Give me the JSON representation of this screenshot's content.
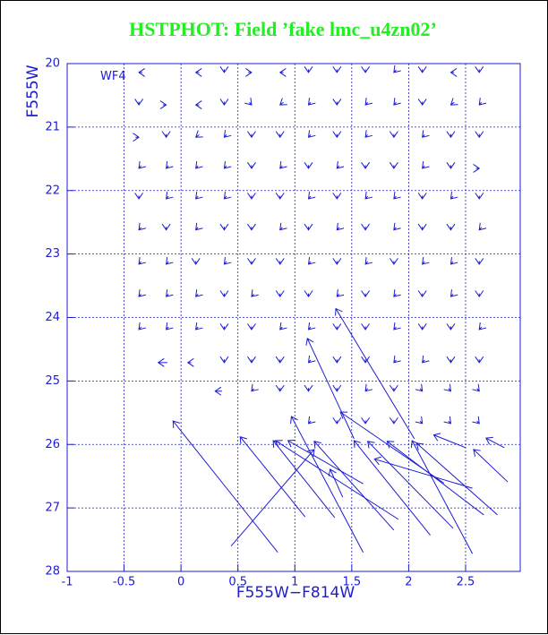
{
  "chart_data": {
    "type": "vector",
    "title": "HSTPHOT: Field ’fake lmc_u4zn02’",
    "title_color": "#22ee22",
    "xlabel": "F555W−F814W",
    "ylabel": "F555W",
    "annotation": "WF4",
    "color": "#1c1cd0",
    "grid": true,
    "y_inverted": true,
    "xlim": [
      -1,
      2.98
    ],
    "ylim": [
      20,
      28
    ],
    "xticks": [
      -1,
      -0.5,
      0,
      0.5,
      1,
      1.5,
      2,
      2.5
    ],
    "yticks": [
      20,
      21,
      22,
      23,
      24,
      25,
      26,
      27,
      28
    ],
    "arrows": [
      [
        -0.34,
        20.14,
        -0.37,
        20.14
      ],
      [
        0.16,
        20.14,
        0.13,
        20.14
      ],
      [
        0.38,
        20.09,
        0.38,
        20.14
      ],
      [
        0.59,
        20.14,
        0.62,
        20.14
      ],
      [
        0.9,
        20.14,
        0.87,
        20.14
      ],
      [
        1.12,
        20.09,
        1.12,
        20.14
      ],
      [
        1.37,
        20.09,
        1.37,
        20.14
      ],
      [
        1.62,
        20.09,
        1.62,
        20.14
      ],
      [
        1.89,
        20.1,
        1.87,
        20.14
      ],
      [
        2.12,
        20.09,
        2.12,
        20.14
      ],
      [
        2.4,
        20.14,
        2.37,
        20.14
      ],
      [
        2.62,
        20.09,
        2.62,
        20.14
      ],
      [
        -0.37,
        20.6,
        -0.37,
        20.65
      ],
      [
        -0.16,
        20.65,
        -0.13,
        20.65
      ],
      [
        0.16,
        20.65,
        0.13,
        20.65
      ],
      [
        0.38,
        20.6,
        0.38,
        20.65
      ],
      [
        0.6,
        20.61,
        0.62,
        20.65
      ],
      [
        0.9,
        20.61,
        0.87,
        20.65
      ],
      [
        1.14,
        20.61,
        1.12,
        20.65
      ],
      [
        1.37,
        20.6,
        1.37,
        20.65
      ],
      [
        1.64,
        20.61,
        1.62,
        20.65
      ],
      [
        1.89,
        20.61,
        1.87,
        20.65
      ],
      [
        2.12,
        20.6,
        2.12,
        20.65
      ],
      [
        2.4,
        20.61,
        2.37,
        20.65
      ],
      [
        2.64,
        20.61,
        2.62,
        20.65
      ],
      [
        -0.4,
        21.16,
        -0.37,
        21.16
      ],
      [
        -0.13,
        21.11,
        -0.13,
        21.16
      ],
      [
        0.16,
        21.12,
        0.13,
        21.16
      ],
      [
        0.4,
        21.12,
        0.38,
        21.16
      ],
      [
        0.62,
        21.11,
        0.62,
        21.16
      ],
      [
        0.87,
        21.11,
        0.87,
        21.16
      ],
      [
        1.14,
        21.12,
        1.12,
        21.16
      ],
      [
        1.37,
        21.11,
        1.37,
        21.16
      ],
      [
        1.64,
        21.12,
        1.62,
        21.16
      ],
      [
        1.87,
        21.11,
        1.87,
        21.16
      ],
      [
        2.14,
        21.12,
        2.12,
        21.16
      ],
      [
        2.37,
        21.11,
        2.37,
        21.16
      ],
      [
        2.62,
        21.11,
        2.62,
        21.16
      ],
      [
        -0.35,
        21.61,
        -0.37,
        21.65
      ],
      [
        -0.11,
        21.61,
        -0.13,
        21.65
      ],
      [
        0.15,
        21.61,
        0.13,
        21.65
      ],
      [
        0.4,
        21.61,
        0.38,
        21.65
      ],
      [
        0.62,
        21.6,
        0.62,
        21.65
      ],
      [
        0.89,
        21.61,
        0.87,
        21.65
      ],
      [
        1.12,
        21.6,
        1.12,
        21.65
      ],
      [
        1.39,
        21.61,
        1.37,
        21.65
      ],
      [
        1.62,
        21.6,
        1.62,
        21.65
      ],
      [
        1.87,
        21.6,
        1.87,
        21.65
      ],
      [
        2.14,
        21.61,
        2.12,
        21.65
      ],
      [
        2.37,
        21.6,
        2.37,
        21.65
      ],
      [
        2.59,
        21.65,
        2.62,
        21.65
      ],
      [
        -0.37,
        22.08,
        -0.37,
        22.13
      ],
      [
        -0.11,
        22.09,
        -0.13,
        22.13
      ],
      [
        0.15,
        22.09,
        0.13,
        22.13
      ],
      [
        0.4,
        22.09,
        0.38,
        22.13
      ],
      [
        0.62,
        22.08,
        0.62,
        22.13
      ],
      [
        0.87,
        22.08,
        0.87,
        22.13
      ],
      [
        1.14,
        22.09,
        1.12,
        22.13
      ],
      [
        1.37,
        22.08,
        1.37,
        22.13
      ],
      [
        1.64,
        22.09,
        1.62,
        22.13
      ],
      [
        1.89,
        22.09,
        1.87,
        22.13
      ],
      [
        2.12,
        22.08,
        2.12,
        22.13
      ],
      [
        2.39,
        22.09,
        2.37,
        22.13
      ],
      [
        2.62,
        22.08,
        2.62,
        22.13
      ],
      [
        -0.35,
        22.58,
        -0.37,
        22.62
      ],
      [
        -0.13,
        22.57,
        -0.13,
        22.62
      ],
      [
        0.15,
        22.58,
        0.13,
        22.62
      ],
      [
        0.38,
        22.57,
        0.38,
        22.62
      ],
      [
        0.62,
        22.57,
        0.62,
        22.62
      ],
      [
        0.89,
        22.58,
        0.87,
        22.62
      ],
      [
        1.12,
        22.57,
        1.12,
        22.62
      ],
      [
        1.39,
        22.58,
        1.37,
        22.62
      ],
      [
        1.62,
        22.57,
        1.62,
        22.62
      ],
      [
        1.89,
        22.58,
        1.87,
        22.62
      ],
      [
        2.12,
        22.57,
        2.12,
        22.62
      ],
      [
        2.37,
        22.57,
        2.37,
        22.62
      ],
      [
        2.64,
        22.58,
        2.62,
        22.62
      ],
      [
        -0.35,
        23.12,
        -0.37,
        23.16
      ],
      [
        -0.11,
        23.12,
        -0.13,
        23.16
      ],
      [
        0.13,
        23.11,
        0.13,
        23.16
      ],
      [
        0.4,
        23.12,
        0.38,
        23.16
      ],
      [
        0.62,
        23.11,
        0.62,
        23.16
      ],
      [
        0.87,
        23.11,
        0.87,
        23.16
      ],
      [
        1.14,
        23.12,
        1.12,
        23.16
      ],
      [
        1.37,
        23.11,
        1.37,
        23.16
      ],
      [
        1.64,
        23.12,
        1.62,
        23.16
      ],
      [
        1.87,
        23.11,
        1.87,
        23.16
      ],
      [
        2.14,
        23.12,
        2.12,
        23.16
      ],
      [
        2.39,
        23.12,
        2.37,
        23.16
      ],
      [
        2.62,
        23.11,
        2.62,
        23.16
      ],
      [
        -0.35,
        23.63,
        -0.37,
        23.67
      ],
      [
        -0.11,
        23.63,
        -0.13,
        23.67
      ],
      [
        0.15,
        23.63,
        0.13,
        23.67
      ],
      [
        0.38,
        23.62,
        0.38,
        23.67
      ],
      [
        0.64,
        23.63,
        0.62,
        23.67
      ],
      [
        0.87,
        23.62,
        0.87,
        23.67
      ],
      [
        1.12,
        23.62,
        1.12,
        23.67
      ],
      [
        1.39,
        23.63,
        1.37,
        23.67
      ],
      [
        1.62,
        23.62,
        1.62,
        23.67
      ],
      [
        1.89,
        23.63,
        1.87,
        23.67
      ],
      [
        2.12,
        23.62,
        2.12,
        23.67
      ],
      [
        2.39,
        23.63,
        2.37,
        23.67
      ],
      [
        2.62,
        23.62,
        2.62,
        23.67
      ],
      [
        -0.35,
        24.15,
        -0.37,
        24.19
      ],
      [
        -0.11,
        24.15,
        -0.13,
        24.19
      ],
      [
        0.15,
        24.15,
        0.13,
        24.19
      ],
      [
        0.38,
        24.14,
        0.38,
        24.19
      ],
      [
        0.62,
        24.14,
        0.62,
        24.19
      ],
      [
        0.89,
        24.15,
        0.87,
        24.19
      ],
      [
        1.14,
        24.15,
        1.12,
        24.19
      ],
      [
        1.37,
        24.14,
        1.37,
        24.19
      ],
      [
        1.62,
        24.14,
        1.62,
        24.19
      ],
      [
        1.89,
        24.15,
        1.87,
        24.19
      ],
      [
        2.12,
        24.14,
        2.12,
        24.19
      ],
      [
        2.37,
        24.14,
        2.37,
        24.19
      ],
      [
        2.64,
        24.15,
        2.62,
        24.19
      ],
      [
        -0.12,
        24.71,
        -0.2,
        24.71
      ],
      [
        0.09,
        24.71,
        0.06,
        24.71
      ],
      [
        0.38,
        24.66,
        0.38,
        24.71
      ],
      [
        0.62,
        24.66,
        0.62,
        24.71
      ],
      [
        0.87,
        24.66,
        0.87,
        24.71
      ],
      [
        1.14,
        24.67,
        1.12,
        24.71
      ],
      [
        1.37,
        24.66,
        1.37,
        24.71
      ],
      [
        1.62,
        24.66,
        1.62,
        24.71
      ],
      [
        1.89,
        24.67,
        1.87,
        24.71
      ],
      [
        2.14,
        24.67,
        2.12,
        24.71
      ],
      [
        2.37,
        24.66,
        2.37,
        24.71
      ],
      [
        2.62,
        24.66,
        2.62,
        24.71
      ],
      [
        0.36,
        25.16,
        0.3,
        25.16
      ],
      [
        0.64,
        25.12,
        0.62,
        25.16
      ],
      [
        0.87,
        25.11,
        0.87,
        25.16
      ],
      [
        1.12,
        25.11,
        1.12,
        25.16
      ],
      [
        1.37,
        25.11,
        1.37,
        25.16
      ],
      [
        1.64,
        25.12,
        1.62,
        25.16
      ],
      [
        1.87,
        25.11,
        1.87,
        25.16
      ],
      [
        2.1,
        25.12,
        2.12,
        25.16
      ],
      [
        2.35,
        25.12,
        2.37,
        25.16
      ],
      [
        2.6,
        25.12,
        2.62,
        25.16
      ],
      [
        1.14,
        25.63,
        1.12,
        25.67
      ],
      [
        1.37,
        25.62,
        1.37,
        25.67
      ],
      [
        1.62,
        25.62,
        1.62,
        25.67
      ],
      [
        1.87,
        25.62,
        1.87,
        25.67
      ],
      [
        2.1,
        25.63,
        2.12,
        25.67
      ],
      [
        2.35,
        25.63,
        2.37,
        25.67
      ],
      [
        2.6,
        25.63,
        2.62,
        25.67
      ],
      [
        0.85,
        27.7,
        -0.07,
        25.63
      ],
      [
        0.44,
        27.6,
        1.17,
        26.08
      ],
      [
        1.09,
        27.14,
        0.52,
        25.88
      ],
      [
        1.35,
        27.15,
        0.81,
        25.94
      ],
      [
        1.6,
        27.7,
        0.97,
        25.56
      ],
      [
        1.91,
        27.18,
        0.83,
        25.94
      ],
      [
        1.87,
        27.35,
        1.17,
        25.95
      ],
      [
        1.6,
        26.62,
        0.94,
        25.94
      ],
      [
        1.42,
        26.83,
        1.31,
        26.39
      ],
      [
        2.19,
        27.43,
        1.52,
        25.94
      ],
      [
        2.39,
        27.32,
        1.64,
        25.95
      ],
      [
        2.31,
        26.61,
        1.4,
        25.49
      ],
      [
        2.56,
        27.72,
        2.03,
        25.94
      ],
      [
        2.66,
        27.11,
        1.81,
        25.95
      ],
      [
        2.78,
        27.11,
        2.07,
        25.98
      ],
      [
        2.87,
        26.59,
        2.57,
        26.08
      ],
      [
        2.05,
        25.91,
        1.36,
        23.86
      ],
      [
        1.52,
        25.91,
        1.11,
        24.33
      ],
      [
        2.84,
        26.05,
        2.68,
        25.9
      ],
      [
        2.5,
        26.05,
        2.22,
        25.85
      ],
      [
        2.56,
        26.69,
        1.7,
        26.23
      ]
    ]
  }
}
